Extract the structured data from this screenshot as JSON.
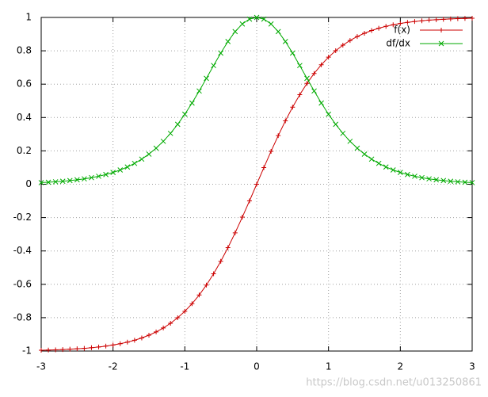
{
  "chart_data": {
    "type": "line",
    "x": [
      -3,
      -2.9,
      -2.8,
      -2.7,
      -2.6,
      -2.5,
      -2.4,
      -2.3,
      -2.2,
      -2.1,
      -2,
      -1.9,
      -1.8,
      -1.7,
      -1.6,
      -1.5,
      -1.4,
      -1.3,
      -1.2,
      -1.1,
      -1,
      -0.9,
      -0.8,
      -0.7,
      -0.6,
      -0.5,
      -0.4,
      -0.3,
      -0.2,
      -0.1,
      0,
      0.1,
      0.2,
      0.3,
      0.4,
      0.5,
      0.6,
      0.7,
      0.8,
      0.9,
      1,
      1.1,
      1.2,
      1.3,
      1.4,
      1.5,
      1.6,
      1.7,
      1.8,
      1.9,
      2,
      2.1,
      2.2,
      2.3,
      2.4,
      2.5,
      2.6,
      2.7,
      2.8,
      2.9,
      3
    ],
    "series": [
      {
        "name": "f(x)",
        "color": "#cc0000",
        "marker": "plus",
        "values": [
          -0.9951,
          -0.994,
          -0.9926,
          -0.991,
          -0.989,
          -0.9866,
          -0.9837,
          -0.9801,
          -0.9757,
          -0.9705,
          -0.964,
          -0.9562,
          -0.9468,
          -0.9354,
          -0.9217,
          -0.9051,
          -0.8854,
          -0.8617,
          -0.8337,
          -0.8005,
          -0.7616,
          -0.7163,
          -0.664,
          -0.6044,
          -0.537,
          -0.4621,
          -0.3799,
          -0.2913,
          -0.1974,
          -0.0997,
          0,
          0.0997,
          0.1974,
          0.2913,
          0.3799,
          0.4621,
          0.537,
          0.6044,
          0.664,
          0.7163,
          0.7616,
          0.8005,
          0.8337,
          0.8617,
          0.8854,
          0.9051,
          0.9217,
          0.9354,
          0.9468,
          0.9562,
          0.964,
          0.9705,
          0.9757,
          0.9801,
          0.9837,
          0.9866,
          0.989,
          0.991,
          0.9926,
          0.994,
          0.9951
        ]
      },
      {
        "name": "df/dx",
        "color": "#00aa00",
        "marker": "cross",
        "values": [
          0.0099,
          0.012,
          0.0146,
          0.0179,
          0.0218,
          0.0266,
          0.0323,
          0.0394,
          0.0479,
          0.0582,
          0.0707,
          0.0856,
          0.1035,
          0.125,
          0.1505,
          0.1807,
          0.2161,
          0.2575,
          0.3049,
          0.3592,
          0.42,
          0.4869,
          0.5591,
          0.6347,
          0.7116,
          0.7864,
          0.8556,
          0.9151,
          0.961,
          0.9901,
          1,
          0.9901,
          0.961,
          0.9151,
          0.8556,
          0.7864,
          0.7116,
          0.6347,
          0.5591,
          0.4869,
          0.42,
          0.3592,
          0.3049,
          0.2575,
          0.2161,
          0.1807,
          0.1505,
          0.125,
          0.1035,
          0.0856,
          0.0707,
          0.0582,
          0.0479,
          0.0394,
          0.0323,
          0.0266,
          0.0218,
          0.0179,
          0.0146,
          0.012,
          0.0099
        ]
      }
    ],
    "xlim": [
      -3,
      3
    ],
    "xticks": [
      -3,
      -2,
      -1,
      0,
      1,
      2,
      3
    ],
    "ylim": [
      -1,
      1
    ],
    "yticks": [
      -1,
      -0.8,
      -0.6,
      -0.4,
      -0.2,
      0,
      0.2,
      0.4,
      0.6,
      0.8,
      1
    ],
    "grid": true,
    "legend": "top-right",
    "watermark": "https://blog.csdn.net/u013250861"
  }
}
